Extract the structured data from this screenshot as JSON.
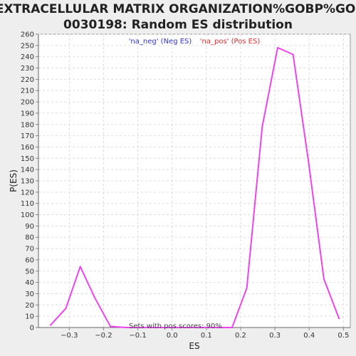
{
  "chart_data": {
    "type": "line",
    "title_lines": [
      "EXTRACELLULAR MATRIX ORGANIZATION%GOBP%GO:",
      "0030198: Random ES distribution"
    ],
    "xlabel": "ES",
    "ylabel": "P(ES)",
    "xlim": [
      -0.39,
      0.52
    ],
    "ylim": [
      0,
      260
    ],
    "x_ticks": [
      -0.3,
      -0.2,
      -0.1,
      0.0,
      0.1,
      0.2,
      0.3,
      0.4,
      0.5
    ],
    "x_tick_labels": [
      "−0.3",
      "−0.2",
      "−0.1",
      "0.0",
      "0.1",
      "0.2",
      "0.3",
      "0.4",
      "0.5"
    ],
    "y_ticks": [
      0,
      10,
      20,
      30,
      40,
      50,
      60,
      70,
      80,
      90,
      100,
      110,
      120,
      130,
      140,
      150,
      160,
      170,
      180,
      190,
      200,
      210,
      220,
      230,
      240,
      250,
      260
    ],
    "grid": true,
    "legend": {
      "placement": "top-center",
      "entries": [
        {
          "label": "'na_neg' (Neg ES)",
          "color": "#3333cc"
        },
        {
          "label": "'na_pos' (Pos ES)",
          "color": "#e03030"
        }
      ]
    },
    "annotation": "Sets with pos scores: 90%",
    "series": [
      {
        "color": "#ee44ee",
        "points": [
          {
            "x": -0.355,
            "y": 2
          },
          {
            "x": -0.31,
            "y": 17
          },
          {
            "x": -0.268,
            "y": 54
          },
          {
            "x": -0.225,
            "y": 26
          },
          {
            "x": -0.18,
            "y": 1
          },
          {
            "x": -0.135,
            "y": 0
          },
          {
            "x": -0.09,
            "y": 0
          },
          {
            "x": -0.045,
            "y": 0
          },
          {
            "x": 0.0,
            "y": 0
          },
          {
            "x": 0.045,
            "y": 0
          },
          {
            "x": 0.09,
            "y": 0
          },
          {
            "x": 0.135,
            "y": 0
          },
          {
            "x": 0.175,
            "y": 0
          },
          {
            "x": 0.218,
            "y": 35
          },
          {
            "x": 0.263,
            "y": 178
          },
          {
            "x": 0.308,
            "y": 248
          },
          {
            "x": 0.353,
            "y": 242
          },
          {
            "x": 0.398,
            "y": 147
          },
          {
            "x": 0.443,
            "y": 43
          },
          {
            "x": 0.487,
            "y": 8
          }
        ]
      }
    ]
  }
}
